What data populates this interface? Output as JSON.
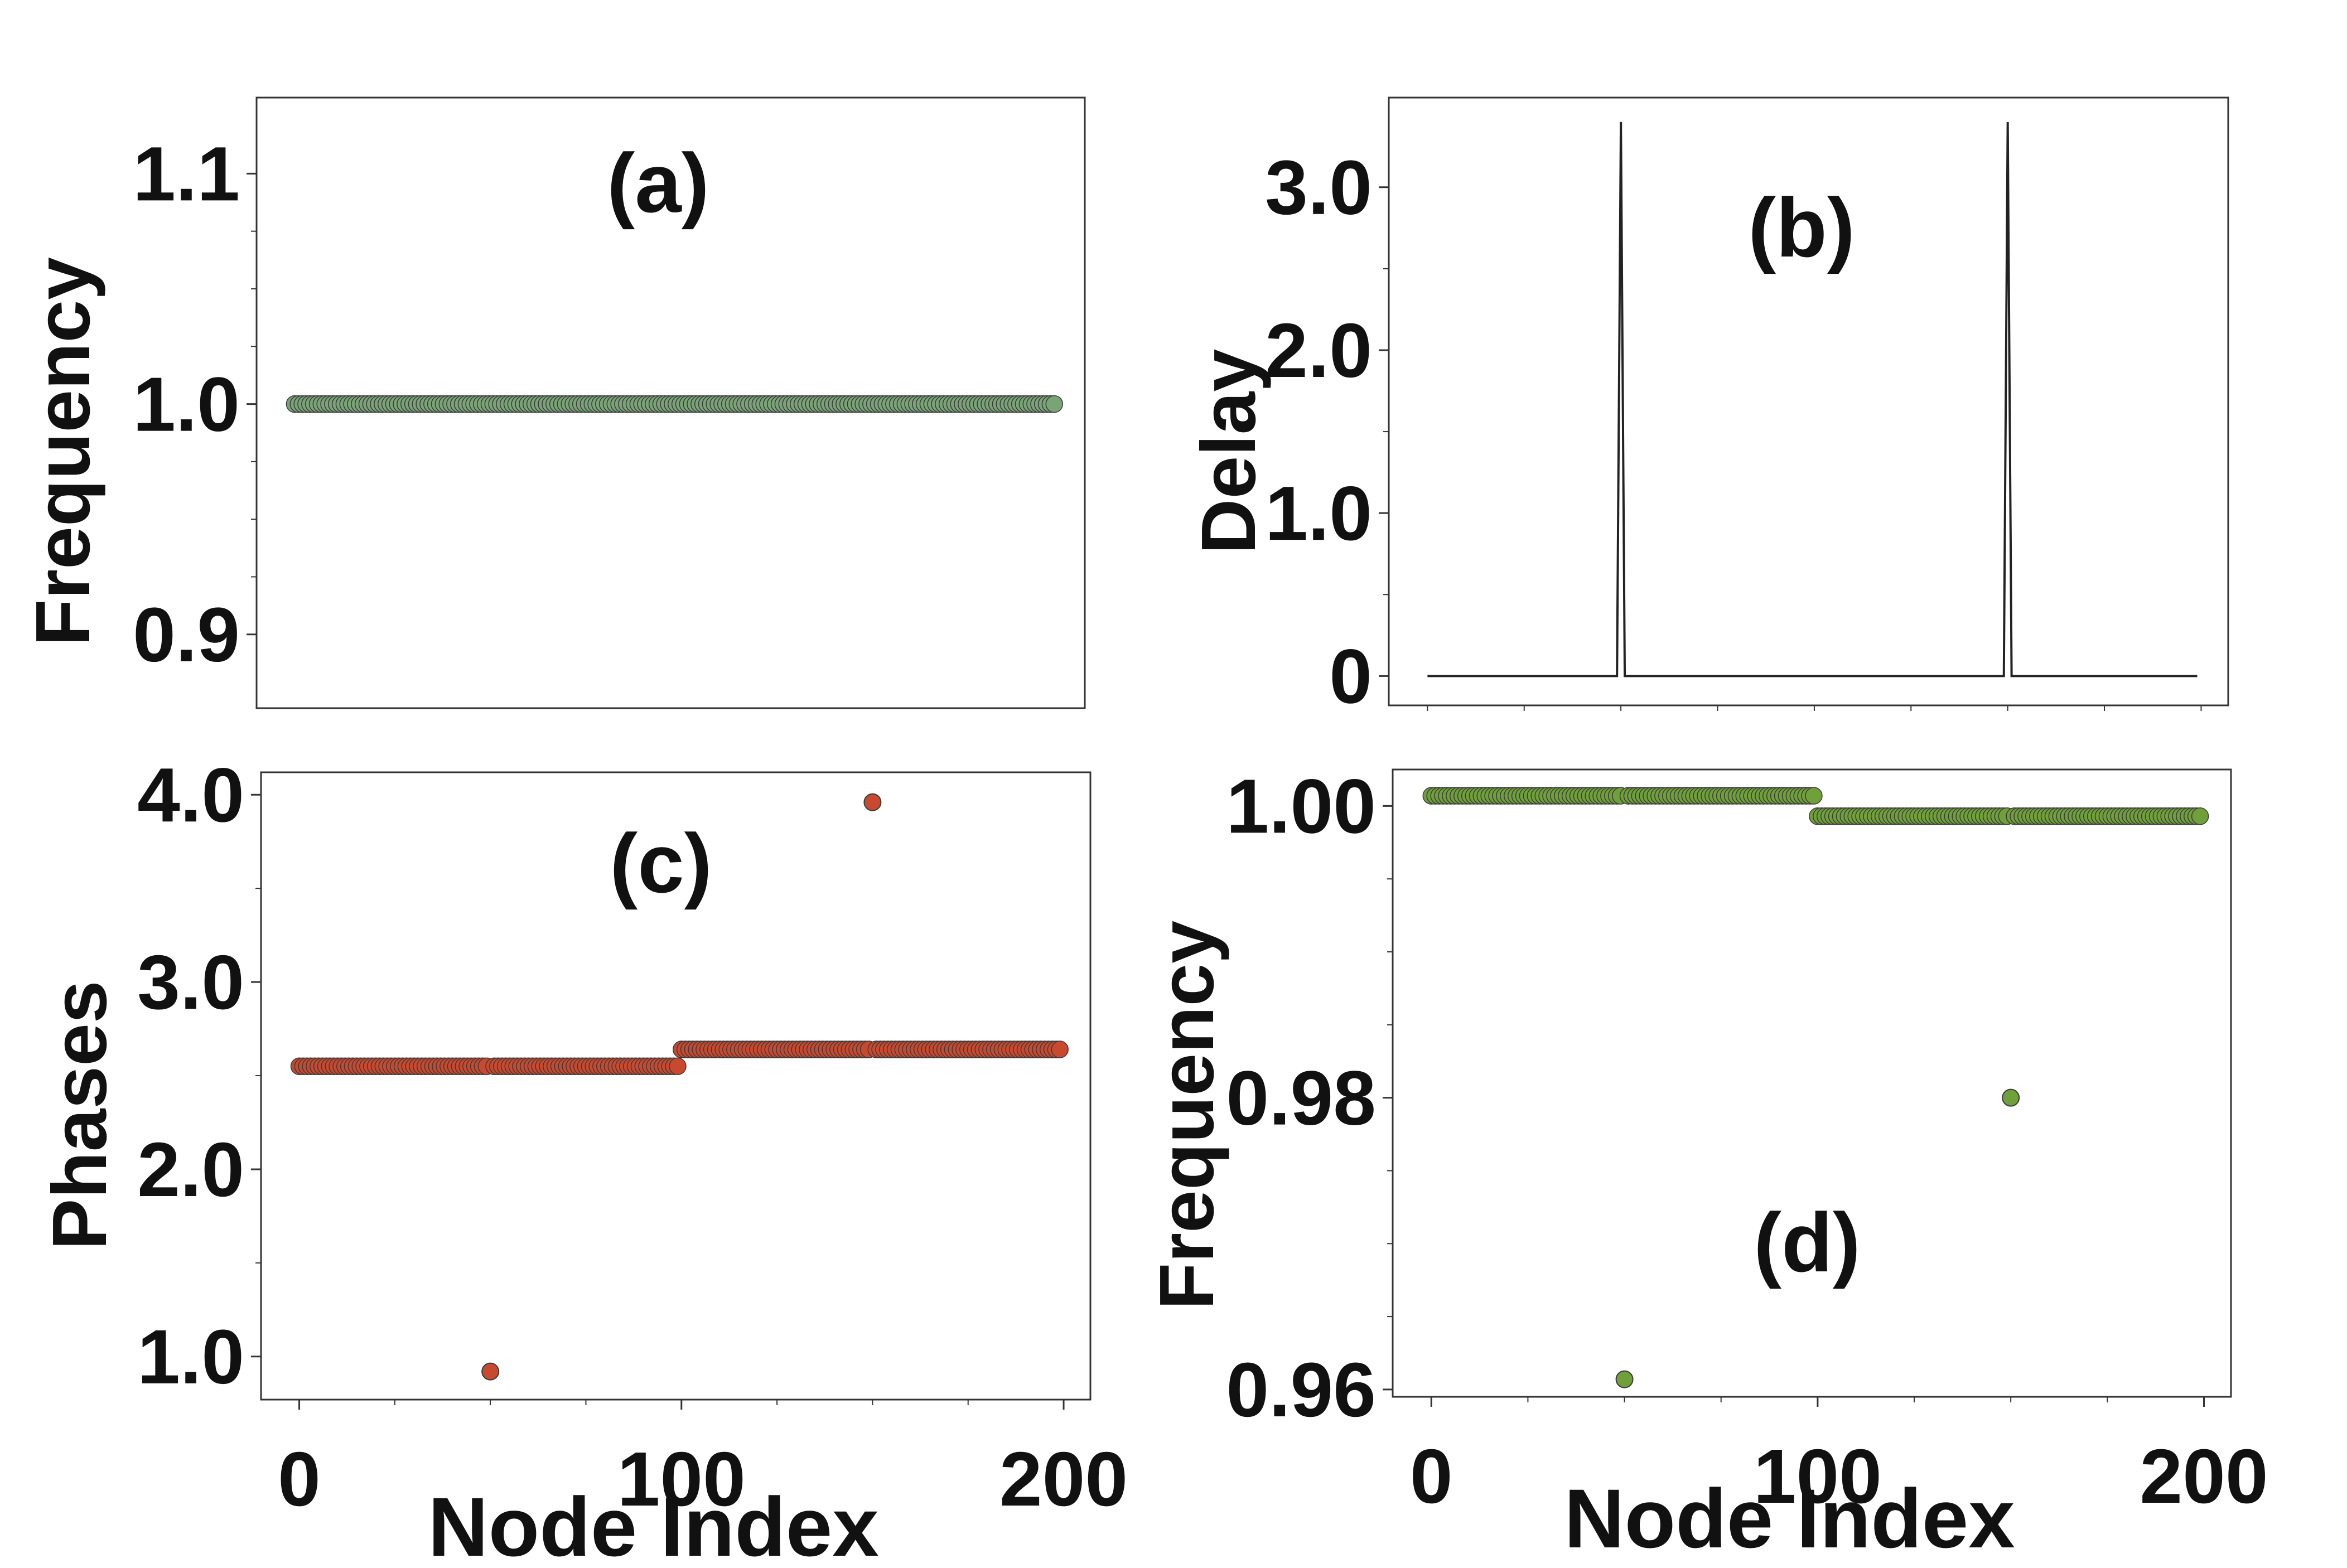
{
  "figure": {
    "x_label": "Node Index"
  },
  "chart_data": [
    {
      "id": "a",
      "type": "scatter",
      "panel_label": "(a)",
      "xlabel": "",
      "ylabel": "Frequency",
      "xlim": [
        -10,
        207
      ],
      "ylim": [
        0.868,
        1.133
      ],
      "yticks": [
        0.9,
        1.0,
        1.1
      ],
      "ytick_labels": [
        "0.9",
        "1.0",
        "1.1"
      ],
      "yminor": [
        0.925,
        0.95,
        0.975,
        1.025,
        1.05,
        1.075
      ],
      "xticks": [],
      "xtick_labels": [],
      "xminor": [],
      "color": "#7aa477",
      "series": [
        {
          "name": "frequency",
          "x_start": 0,
          "x_end": 199,
          "segments": [
            {
              "from": 0,
              "to": 199,
              "value": 1.0
            }
          ],
          "outliers": []
        }
      ]
    },
    {
      "id": "b",
      "type": "line",
      "panel_label": "(b)",
      "xlabel": "",
      "ylabel": "Delay",
      "xlim": [
        -10,
        207
      ],
      "ylim": [
        -0.18,
        3.55
      ],
      "yticks": [
        0,
        1.0,
        2.0,
        3.0
      ],
      "ytick_labels": [
        "0",
        "1.0",
        "2.0",
        "3.0"
      ],
      "yminor": [
        0.5,
        1.5,
        2.5
      ],
      "xticks": [],
      "xtick_labels": [],
      "xminor": [
        0,
        25,
        50,
        75,
        100,
        125,
        150,
        175,
        200
      ],
      "color": "#222222",
      "series": [
        {
          "name": "delay",
          "x": [
            0,
            49,
            50,
            51,
            149,
            150,
            151,
            199
          ],
          "y": [
            0,
            0,
            3.4,
            0,
            0,
            3.4,
            0,
            0
          ]
        }
      ]
    },
    {
      "id": "c",
      "type": "scatter",
      "panel_label": "(c)",
      "xlabel": "Node Index",
      "ylabel": "Phases",
      "xlim": [
        -10,
        207
      ],
      "ylim": [
        0.77,
        4.12
      ],
      "yticks": [
        1.0,
        2.0,
        3.0,
        4.0
      ],
      "ytick_labels": [
        "1.0",
        "2.0",
        "3.0",
        "4.0"
      ],
      "yminor": [
        1.5,
        2.5,
        3.5
      ],
      "xticks": [
        0,
        100,
        200
      ],
      "xtick_labels": [
        "0",
        "100",
        "200"
      ],
      "xminor": [
        25,
        50,
        75,
        125,
        150,
        175
      ],
      "color": "#c9492f",
      "series": [
        {
          "name": "phases",
          "x_start": 0,
          "x_end": 199,
          "segments": [
            {
              "from": 0,
              "to": 99,
              "value": 2.55
            },
            {
              "from": 100,
              "to": 199,
              "value": 2.64
            }
          ],
          "outliers": [
            {
              "x": 50,
              "y": 0.92
            },
            {
              "x": 150,
              "y": 3.96
            }
          ]
        }
      ]
    },
    {
      "id": "d",
      "type": "scatter",
      "panel_label": "(d)",
      "xlabel": "Node Index",
      "ylabel": "Frequency",
      "xlim": [
        -10,
        207
      ],
      "ylim": [
        0.9595,
        1.0025
      ],
      "yticks": [
        0.96,
        0.98,
        1.0
      ],
      "ytick_labels": [
        "0.96",
        "0.98",
        "1.00"
      ],
      "yminor": [
        0.965,
        0.97,
        0.975,
        0.985,
        0.99,
        0.995
      ],
      "xticks": [
        0,
        100,
        200
      ],
      "xtick_labels": [
        "0",
        "100",
        "200"
      ],
      "xminor": [
        25,
        50,
        75,
        125,
        150,
        175
      ],
      "color": "#6fa03a",
      "series": [
        {
          "name": "frequency",
          "x_start": 0,
          "x_end": 199,
          "segments": [
            {
              "from": 0,
              "to": 99,
              "value": 1.0007
            },
            {
              "from": 100,
              "to": 199,
              "value": 0.9993
            }
          ],
          "outliers": [
            {
              "x": 50,
              "y": 0.9607
            },
            {
              "x": 150,
              "y": 0.98
            }
          ]
        }
      ]
    }
  ]
}
